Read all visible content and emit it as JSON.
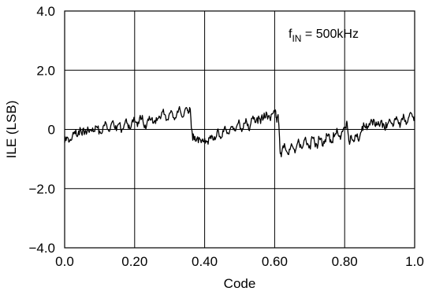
{
  "chart_data": {
    "type": "line",
    "xlabel": "Code",
    "ylabel": "ILE (LSB)",
    "xlim": [
      0.0,
      1.0
    ],
    "ylim": [
      -4.0,
      4.0
    ],
    "xticks": [
      0.0,
      0.2,
      0.4,
      0.6,
      0.8,
      1.0
    ],
    "xtick_labels": [
      "0.0",
      "0.20",
      "0.40",
      "0.60",
      "0.80",
      "1.0"
    ],
    "yticks": [
      4.0,
      2.0,
      0,
      -2.0,
      -4.0
    ],
    "ytick_labels": [
      "4.0",
      "2.0",
      "0",
      "−2.0",
      "−4.0"
    ],
    "grid": true,
    "annotation": {
      "prefix": "f",
      "subscript": "IN",
      "suffix": " = 500kHz"
    },
    "series": [
      {
        "color": "#000000",
        "x": [
          0.0,
          0.01,
          0.02,
          0.03,
          0.04,
          0.05,
          0.06,
          0.07,
          0.08,
          0.09,
          0.1,
          0.11,
          0.12,
          0.13,
          0.14,
          0.15,
          0.16,
          0.17,
          0.18,
          0.19,
          0.2,
          0.21,
          0.22,
          0.23,
          0.24,
          0.25,
          0.26,
          0.27,
          0.28,
          0.29,
          0.3,
          0.31,
          0.32,
          0.33,
          0.34,
          0.35,
          0.355,
          0.36,
          0.365,
          0.37,
          0.38,
          0.39,
          0.4,
          0.41,
          0.42,
          0.43,
          0.44,
          0.45,
          0.46,
          0.47,
          0.48,
          0.49,
          0.5,
          0.51,
          0.52,
          0.53,
          0.54,
          0.55,
          0.56,
          0.57,
          0.58,
          0.59,
          0.6,
          0.605,
          0.61,
          0.615,
          0.62,
          0.63,
          0.64,
          0.65,
          0.66,
          0.67,
          0.68,
          0.69,
          0.7,
          0.71,
          0.72,
          0.73,
          0.74,
          0.75,
          0.76,
          0.77,
          0.78,
          0.79,
          0.8,
          0.805,
          0.81,
          0.815,
          0.82,
          0.83,
          0.84,
          0.85,
          0.86,
          0.87,
          0.88,
          0.89,
          0.9,
          0.91,
          0.92,
          0.93,
          0.94,
          0.95,
          0.96,
          0.97,
          0.98,
          0.99,
          1.0
        ],
        "y": [
          -0.45,
          -0.3,
          -0.35,
          -0.15,
          -0.05,
          -0.2,
          0.0,
          -0.1,
          0.05,
          0.1,
          -0.05,
          0.1,
          0.15,
          0.0,
          0.2,
          0.1,
          0.05,
          0.15,
          0.2,
          0.1,
          0.3,
          0.25,
          0.35,
          0.15,
          0.3,
          0.4,
          0.2,
          0.45,
          0.6,
          0.3,
          0.55,
          0.4,
          0.5,
          0.65,
          0.45,
          0.7,
          0.6,
          0.5,
          -0.2,
          -0.35,
          -0.25,
          -0.45,
          -0.3,
          -0.5,
          -0.2,
          -0.35,
          -0.1,
          -0.25,
          0.0,
          -0.15,
          0.1,
          0.05,
          0.2,
          0.0,
          0.25,
          0.1,
          0.35,
          0.4,
          0.2,
          0.55,
          0.35,
          0.5,
          0.65,
          0.4,
          0.5,
          -0.65,
          -0.8,
          -0.6,
          -0.85,
          -0.55,
          -0.7,
          -0.45,
          -0.6,
          -0.4,
          -0.55,
          -0.3,
          -0.5,
          -0.35,
          -0.4,
          -0.2,
          -0.35,
          -0.25,
          -0.1,
          -0.2,
          0.05,
          0.2,
          -0.15,
          -0.45,
          -0.3,
          -0.2,
          -0.4,
          0.1,
          0.05,
          0.2,
          0.15,
          0.25,
          0.1,
          0.2,
          0.05,
          0.3,
          0.15,
          0.35,
          0.2,
          0.4,
          0.25,
          0.55,
          0.45
        ]
      }
    ]
  }
}
